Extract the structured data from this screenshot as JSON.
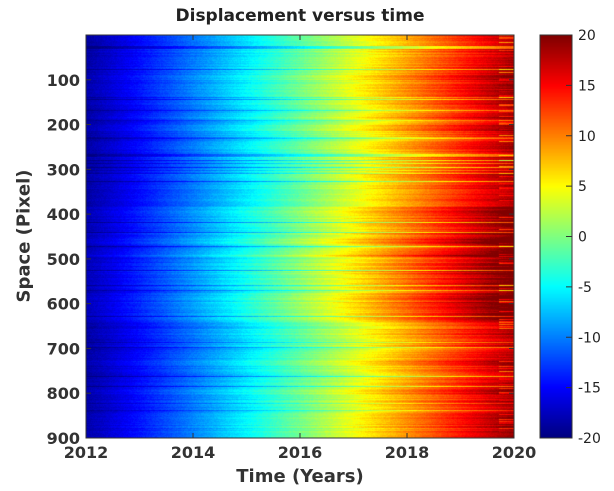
{
  "chart_data": {
    "type": "heatmap",
    "title": "Displacement versus time",
    "xlabel": "Time (Years)",
    "ylabel": "Space (Pixel)",
    "xlim": [
      2012,
      2020
    ],
    "ylim": [
      0,
      900
    ],
    "y_reversed": true,
    "x_ticks": [
      2012,
      2014,
      2016,
      2018,
      2020
    ],
    "y_ticks": [
      100,
      200,
      300,
      400,
      500,
      600,
      700,
      800,
      900
    ],
    "colorbar": {
      "colormap": "jet",
      "range": [
        -20,
        20
      ],
      "ticks": [
        20,
        15,
        10,
        5,
        0,
        -5,
        -10,
        -15,
        -20
      ]
    },
    "description_series": [
      {
        "time": 2012.0,
        "displacement_approx": -18
      },
      {
        "time": 2014.0,
        "displacement_approx": -10
      },
      {
        "time": 2016.0,
        "displacement_approx": -1
      },
      {
        "time": 2017.5,
        "displacement_approx": 7
      },
      {
        "time": 2019.0,
        "displacement_approx": 14
      },
      {
        "time": 2020.0,
        "displacement_approx": 18
      }
    ]
  }
}
